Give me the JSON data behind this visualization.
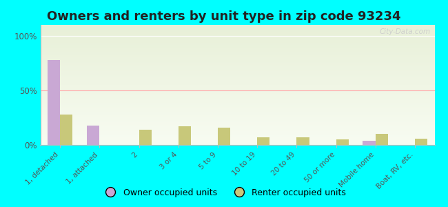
{
  "title": "Owners and renters by unit type in zip code 93234",
  "categories": [
    "1, detached",
    "1, attached",
    "2",
    "3 or 4",
    "5 to 9",
    "10 to 19",
    "20 to 49",
    "50 or more",
    "Mobile home",
    "Boat, RV, etc."
  ],
  "owner_values": [
    78,
    18,
    0,
    0,
    0,
    0,
    0,
    0,
    4,
    0
  ],
  "renter_values": [
    28,
    0,
    14,
    17,
    16,
    7,
    7,
    5,
    10,
    6
  ],
  "owner_color": "#c9a8d4",
  "renter_color": "#c8c87a",
  "background_color": "#00ffff",
  "plot_bg_top": "#e8f0d8",
  "plot_bg_bottom": "#f5f8ee",
  "yticks": [
    0,
    50,
    100
  ],
  "ylim": [
    0,
    110
  ],
  "title_fontsize": 13,
  "legend_owner": "Owner occupied units",
  "legend_renter": "Renter occupied units",
  "watermark": "City-Data.com",
  "bar_width": 0.32
}
